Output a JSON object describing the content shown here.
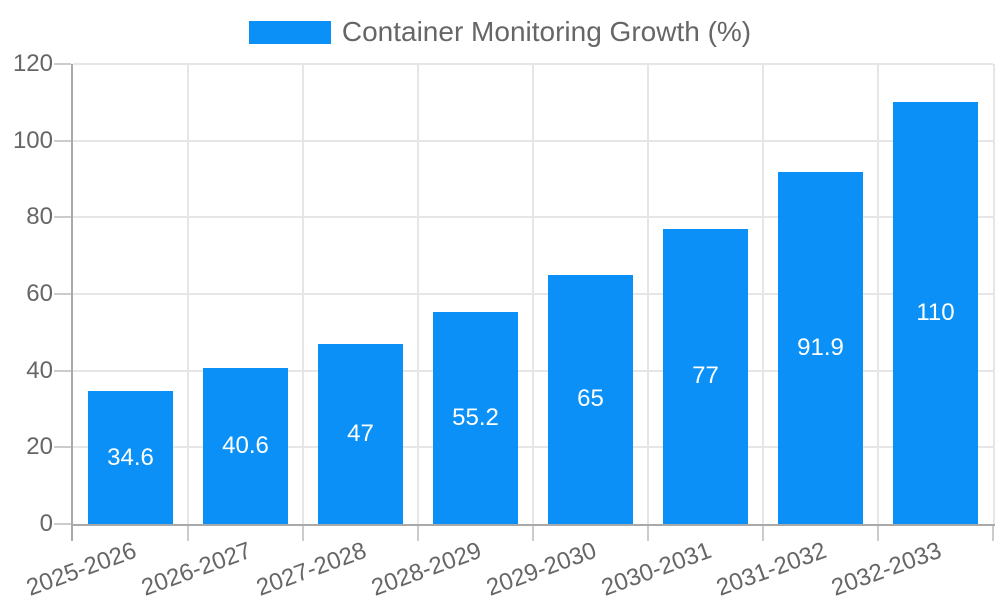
{
  "chart_data": {
    "type": "bar",
    "title": "Container Monitoring Growth (%)",
    "legend_position": "top",
    "categories": [
      "2025-2026",
      "2026-2027",
      "2027-2028",
      "2028-2029",
      "2029-2030",
      "2030-2031",
      "2031-2032",
      "2032-2033"
    ],
    "series": [
      {
        "name": "Container Monitoring Growth (%)",
        "values": [
          34.6,
          40.6,
          47,
          55.2,
          65,
          77,
          91.9,
          110
        ]
      }
    ],
    "xlabel": "",
    "ylabel": "",
    "ylim": [
      0,
      120
    ],
    "yticks": [
      0,
      20,
      40,
      60,
      80,
      100,
      120
    ],
    "grid": true,
    "value_labels_shown": true,
    "x_label_rotation_deg": -20,
    "colors": {
      "bar": "#0a90f6",
      "grid": "#e6e6e6",
      "axis": "#a9a9a9",
      "tick": "#cccccc",
      "tick_text": "#666666",
      "legend_text": "#666666",
      "value_text": "#ffffff",
      "background": "#ffffff"
    }
  }
}
